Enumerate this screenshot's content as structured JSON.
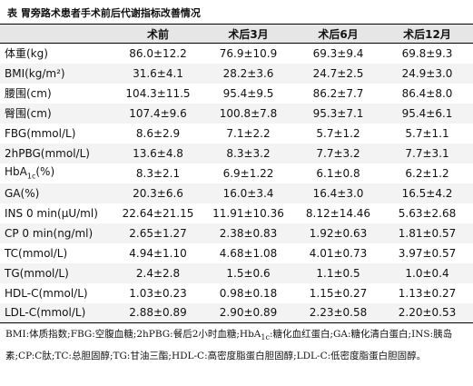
{
  "title": "表  胃旁路术患者手术前后代谢指标改善情况",
  "columns": [
    "",
    "术前",
    "术后3月",
    "术后6月",
    "术后12月"
  ],
  "rows": [
    [
      "体重(kg)",
      "86.0±12.2",
      "76.9±10.9",
      "69.3±9.4",
      "69.8±9.3"
    ],
    [
      "BMI(kg/m²)",
      "31.6±4.1",
      "28.2±3.6",
      "24.7±2.5",
      "24.9±3.0"
    ],
    [
      "腰围(cm)",
      "104.3±11.5",
      "95.4±9.5",
      "86.2±7.7",
      "86.4±8.0"
    ],
    [
      "臀围(cm)",
      "107.4±9.6",
      "100.8±7.8",
      "95.3±7.1",
      "95.4±6.1"
    ],
    [
      "FBG(mmol/L)",
      "8.6±2.9",
      "7.1±2.2",
      "5.7±1.2",
      "5.7±1.1"
    ],
    [
      "2hPBG(mmol/L)",
      "13.6±4.8",
      "8.3±3.2",
      "7.7±3.2",
      "7.7±3.1"
    ],
    [
      "HbA1c(%)",
      "8.3±2.1",
      "6.9±1.22",
      "6.1±0.8",
      "6.2±1.2"
    ],
    [
      "GA(%)",
      "20.3±6.6",
      "16.0±3.4",
      "16.4±3.0",
      "16.5±4.2"
    ],
    [
      "INS 0 min(μU/ml)",
      "22.64±21.15",
      "11.91±10.36",
      "8.12±14.46",
      "5.63±2.68"
    ],
    [
      "CP 0 min(ng/ml)",
      "2.65±1.27",
      "2.38±0.83",
      "1.92±0.63",
      "1.81±0.57"
    ],
    [
      "TC(mmol/L)",
      "4.94±1.10",
      "4.68±1.08",
      "4.01±0.73",
      "3.97±0.57"
    ],
    [
      "TG(mmol/L)",
      "2.4±2.8",
      "1.5±0.6",
      "1.1±0.5",
      "1.0±0.4"
    ],
    [
      "HDL-C(mmol/L)",
      "1.03±0.23",
      "0.98±0.18",
      "1.15±0.27",
      "1.13±0.27"
    ],
    [
      "LDL-C(mmol/L)",
      "2.88±0.89",
      "2.90±0.89",
      "2.23±0.58",
      "2.20±0.53"
    ]
  ],
  "footnote": "BMI:体质指数;FBG:空腹血糖;2hPBG:餐后2小时血糖;HbA1c:糖化血红蛋白;GA:糖化清白蛋白;INS:胰岛素;CP:C肽;TC:总胆固醇;TG:甘油三酯;HDL-C:高密度脂蛋白胆固醇;LDL-C:低密度脂蛋白胆固醇。"
}
